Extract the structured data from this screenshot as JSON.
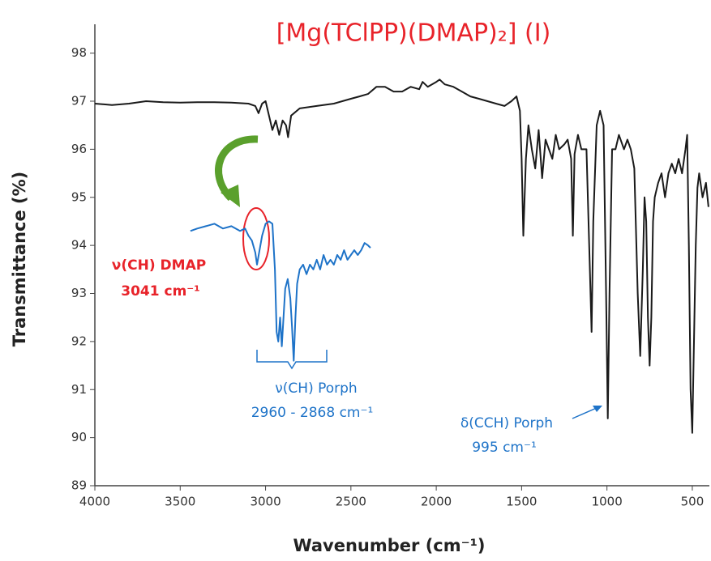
{
  "chart_data": {
    "type": "line",
    "title": "[Mg(TClPP)(DMAP)₂] (I)",
    "xlabel": "Wavenumber (cm⁻¹)",
    "ylabel": "Transmittance (%)",
    "xlim": [
      4000,
      400
    ],
    "ylim": [
      89,
      98.6
    ],
    "xticks": [
      4000,
      3500,
      3000,
      2500,
      2000,
      1500,
      1000,
      500
    ],
    "yticks": [
      89,
      90,
      91,
      92,
      93,
      94,
      95,
      96,
      97,
      98
    ],
    "series": [
      {
        "color": "#1a1a1a",
        "x": [
          4000,
          3900,
          3800,
          3700,
          3600,
          3500,
          3400,
          3300,
          3200,
          3100,
          3060,
          3041,
          3020,
          3000,
          2960,
          2940,
          2920,
          2900,
          2880,
          2868,
          2850,
          2800,
          2700,
          2600,
          2500,
          2450,
          2400,
          2350,
          2300,
          2250,
          2200,
          2150,
          2100,
          2080,
          2050,
          2000,
          1980,
          1950,
          1900,
          1850,
          1800,
          1750,
          1700,
          1650,
          1600,
          1560,
          1530,
          1510,
          1500,
          1490,
          1475,
          1460,
          1440,
          1420,
          1400,
          1380,
          1360,
          1340,
          1320,
          1300,
          1280,
          1250,
          1230,
          1210,
          1200,
          1190,
          1170,
          1150,
          1120,
          1100,
          1090,
          1080,
          1060,
          1040,
          1020,
          1005,
          995,
          985,
          970,
          950,
          930,
          900,
          880,
          860,
          840,
          820,
          805,
          790,
          780,
          770,
          760,
          750,
          740,
          730,
          720,
          700,
          680,
          660,
          640,
          620,
          600,
          580,
          560,
          540,
          530,
          520,
          510,
          500,
          490,
          480,
          470,
          460,
          440,
          420,
          405
        ],
        "values": [
          96.95,
          96.92,
          96.95,
          97.0,
          96.98,
          96.97,
          96.98,
          96.98,
          96.97,
          96.95,
          96.9,
          96.75,
          96.95,
          97.0,
          96.4,
          96.6,
          96.3,
          96.6,
          96.5,
          96.25,
          96.7,
          96.85,
          96.9,
          96.95,
          97.05,
          97.1,
          97.15,
          97.3,
          97.3,
          97.2,
          97.2,
          97.3,
          97.25,
          97.4,
          97.3,
          97.4,
          97.45,
          97.35,
          97.3,
          97.2,
          97.1,
          97.05,
          97.0,
          96.95,
          96.9,
          97.0,
          97.1,
          96.8,
          95.8,
          94.2,
          95.8,
          96.5,
          96.0,
          95.6,
          96.4,
          95.4,
          96.2,
          96.0,
          95.8,
          96.3,
          96.0,
          96.1,
          96.2,
          95.8,
          94.2,
          95.9,
          96.3,
          96.0,
          96.0,
          93.5,
          92.2,
          94.5,
          96.5,
          96.8,
          96.5,
          93.0,
          90.4,
          93.0,
          96.0,
          96.0,
          96.3,
          96.0,
          96.2,
          96.0,
          95.6,
          93.0,
          91.7,
          93.5,
          95.0,
          94.5,
          92.5,
          91.5,
          92.5,
          94.5,
          95.0,
          95.3,
          95.5,
          95.0,
          95.5,
          95.7,
          95.5,
          95.8,
          95.5,
          96.0,
          96.3,
          94.0,
          91.0,
          90.1,
          92.0,
          94.0,
          95.2,
          95.5,
          95.0,
          95.3,
          94.8
        ]
      },
      {
        "color": "#1e73c8",
        "x": [
          3440,
          3400,
          3350,
          3300,
          3250,
          3200,
          3150,
          3120,
          3100,
          3080,
          3060,
          3050,
          3040,
          3020,
          3000,
          2980,
          2960,
          2945,
          2935,
          2925,
          2915,
          2905,
          2895,
          2885,
          2870,
          2855,
          2845,
          2835,
          2825,
          2815,
          2800,
          2780,
          2760,
          2740,
          2720,
          2700,
          2680,
          2660,
          2640,
          2620,
          2600,
          2580,
          2560,
          2540,
          2520,
          2500,
          2480,
          2460,
          2440,
          2420,
          2400,
          2385
        ],
        "values": [
          94.3,
          94.35,
          94.4,
          94.45,
          94.35,
          94.4,
          94.3,
          94.35,
          94.2,
          94.1,
          93.85,
          93.6,
          93.8,
          94.2,
          94.45,
          94.5,
          94.45,
          93.5,
          92.2,
          92.0,
          92.5,
          91.9,
          92.5,
          93.1,
          93.3,
          92.9,
          92.3,
          91.6,
          92.5,
          93.2,
          93.5,
          93.6,
          93.4,
          93.6,
          93.5,
          93.7,
          93.5,
          93.8,
          93.6,
          93.7,
          93.6,
          93.8,
          93.7,
          93.9,
          93.7,
          93.8,
          93.9,
          93.8,
          93.9,
          94.05,
          94.0,
          93.95
        ]
      }
    ],
    "annotations": [
      {
        "text": "ν(CH) DMAP",
        "color": "#e8232a"
      },
      {
        "text": "3041 cm⁻¹",
        "color": "#e8232a"
      },
      {
        "text": "ν(CH) Porph",
        "color": "#1e73c8"
      },
      {
        "text": "2960 - 2868 cm⁻¹",
        "color": "#1e73c8"
      },
      {
        "text": "δ(CCH) Porph",
        "color": "#1e73c8"
      },
      {
        "text": "995 cm⁻¹",
        "color": "#1e73c8"
      }
    ]
  }
}
